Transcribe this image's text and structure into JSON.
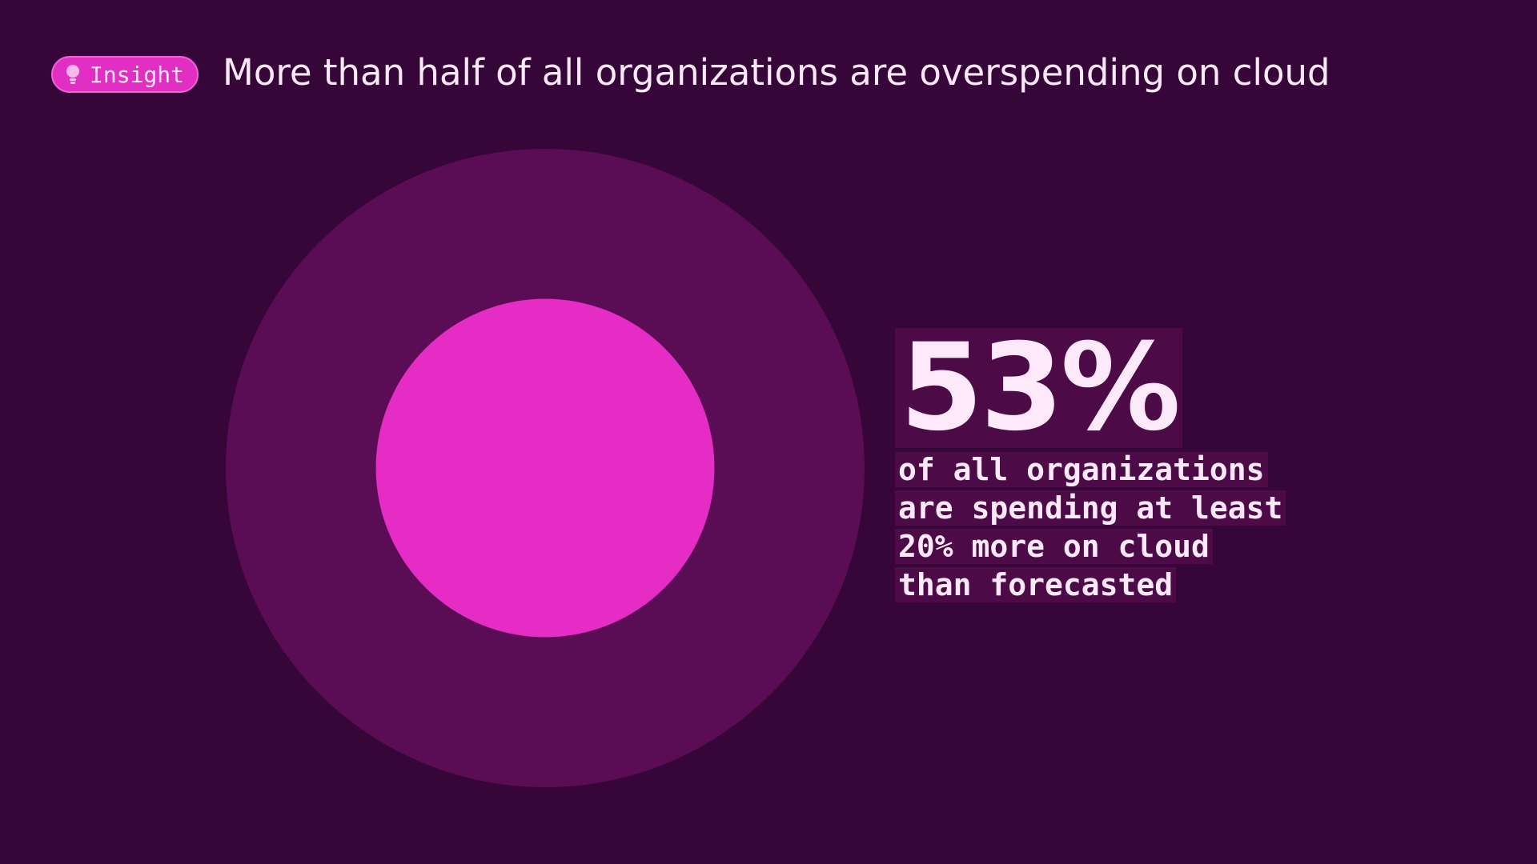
{
  "chart_data": {
    "type": "nested-circle",
    "badge": "Insight",
    "title": "More than half of all organizations are overspending on cloud",
    "value": 53,
    "value_label": "53%",
    "description": [
      "of all organizations",
      "are spending at least",
      "20% more on cloud",
      "than forecasted"
    ],
    "outer_color": "#5a0d55",
    "inner_color": "#e52dc5"
  }
}
